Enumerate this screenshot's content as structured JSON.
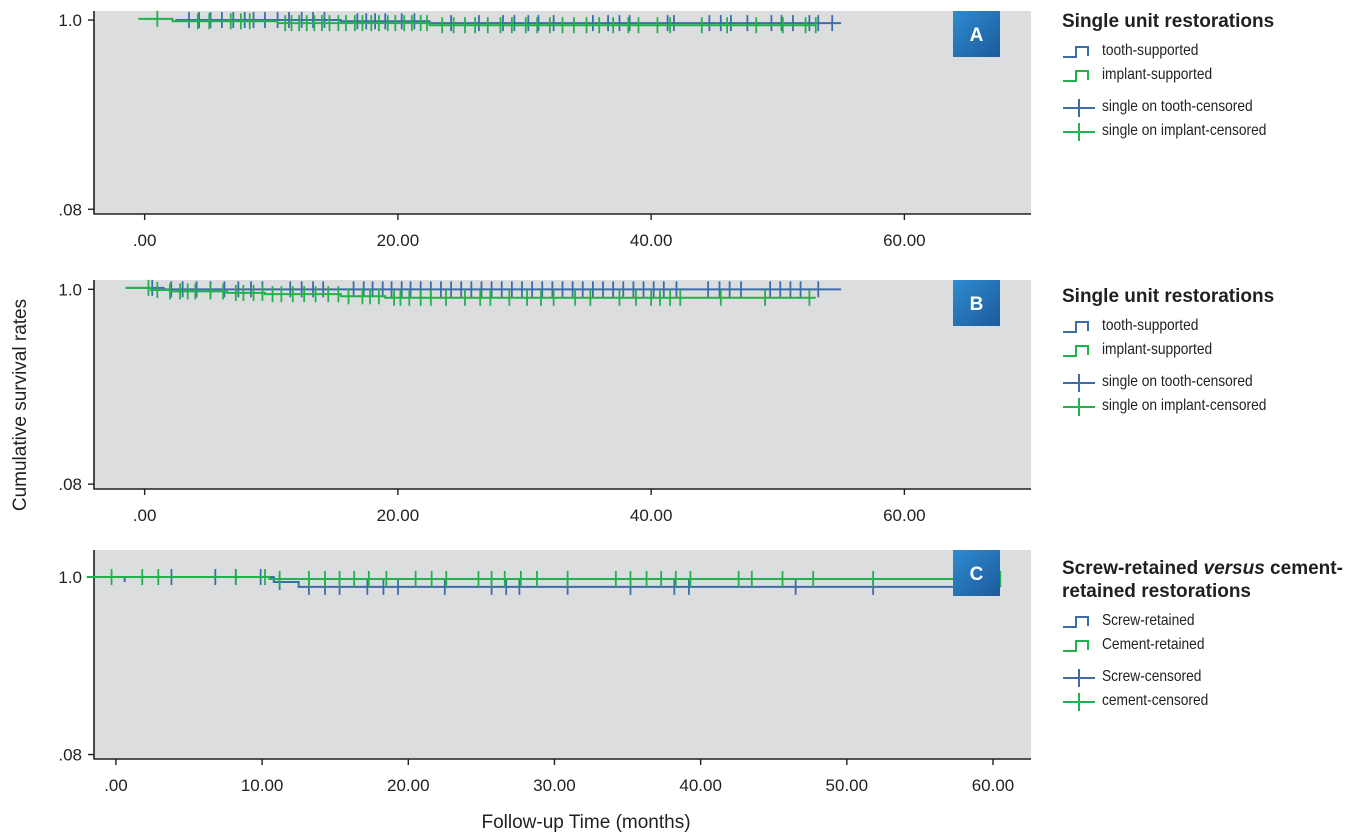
{
  "figure": {
    "y_axis_label": "Cumulative  survival  rates",
    "x_axis_label": "Follow-up Time (months)"
  },
  "colors": {
    "blue": "#3c6da8",
    "green": "#22b24c",
    "plot_bg": "#dcdddf",
    "axis": "#231f20"
  },
  "legends": [
    {
      "title": "Single unit restorations",
      "items": [
        {
          "label": "tooth-supported",
          "kind": "step",
          "color": "#3c6da8"
        },
        {
          "label": "implant-supported",
          "kind": "step",
          "color": "#22b24c"
        },
        {
          "label": "single on tooth-censored",
          "kind": "cross",
          "color": "#3c6da8"
        },
        {
          "label": "single on implant-censored",
          "kind": "cross",
          "color": "#22b24c"
        }
      ]
    },
    {
      "title": "Single unit restorations",
      "items": [
        {
          "label": "tooth-supported",
          "kind": "step",
          "color": "#3c6da8"
        },
        {
          "label": "implant-supported",
          "kind": "step",
          "color": "#22b24c"
        },
        {
          "label": "single on tooth-censored",
          "kind": "cross",
          "color": "#3c6da8"
        },
        {
          "label": "single on implant-censored",
          "kind": "cross",
          "color": "#22b24c"
        }
      ]
    },
    {
      "title_parts": [
        "Screw-retained ",
        "versus",
        " cement-retained restorations"
      ],
      "items": [
        {
          "label": "Screw-retained",
          "kind": "step",
          "color": "#3c6da8"
        },
        {
          "label": "Cement-retained",
          "kind": "step",
          "color": "#22b24c"
        },
        {
          "label": "Screw-censored",
          "kind": "cross",
          "color": "#3c6da8"
        },
        {
          "label": "cement-censored",
          "kind": "cross",
          "color": "#22b24c"
        }
      ]
    }
  ],
  "chart_data": [
    {
      "panel_label": "A",
      "type": "line",
      "xlim": [
        -4,
        70
      ],
      "ylim": [
        0.057,
        1.044
      ],
      "xticks": [
        0,
        20,
        40,
        60
      ],
      "xtick_labels": [
        ".00",
        "20.00",
        "40.00",
        "60.00"
      ],
      "yticks": [
        0.08,
        1.0
      ],
      "ytick_labels": [
        ".08",
        "1.0"
      ],
      "series": [
        {
          "color": "#3c6da8",
          "steps": [
            [
              2.5,
              1.0
            ],
            [
              15.5,
              0.994
            ],
            [
              22.5,
              0.985
            ],
            [
              55,
              0.975
            ]
          ],
          "start": [
            2.5,
            0.994
          ],
          "censored_x": [
            3.5,
            4.3,
            5.2,
            6.1,
            7.0,
            7.9,
            8.6,
            9.5,
            10.5,
            11.4,
            12.4,
            13.3,
            14.2,
            16.8,
            17.5,
            18.2,
            19.0,
            20.3,
            21.3,
            24.2,
            26.4,
            28.3,
            29.2,
            30.3,
            31.1,
            32.3,
            35.4,
            36.6,
            37.5,
            38.3,
            41.3,
            41.8,
            44.6,
            45.5,
            46.3,
            47.6,
            49.5,
            50.3,
            51.2,
            52.5,
            53.2,
            54.3
          ]
        },
        {
          "color": "#22b24c",
          "steps": [
            [
              -0.5,
              1.006
            ],
            [
              2.2,
              0.994
            ],
            [
              10.5,
              0.985
            ],
            [
              22.5,
              0.975
            ],
            [
              53,
              0.975
            ]
          ],
          "start": [
            -0.5,
            1.006
          ],
          "censored_x": [
            1.0,
            4.2,
            5.1,
            6.8,
            7.6,
            8.3,
            11.1,
            11.6,
            12.2,
            12.8,
            13.4,
            14.0,
            14.6,
            15.3,
            15.9,
            16.6,
            17.2,
            17.9,
            18.5,
            19.2,
            19.8,
            20.5,
            21.1,
            21.8,
            22.3,
            23.5,
            24.4,
            25.3,
            26.1,
            27.1,
            28.1,
            29.0,
            30.1,
            31.0,
            32.0,
            33.0,
            33.9,
            34.9,
            35.9,
            37.0,
            38.2,
            39.0,
            40.5,
            41.5,
            44.0,
            46.0,
            48.3,
            50.4,
            52.2,
            53.0
          ]
        }
      ]
    },
    {
      "panel_label": "B",
      "type": "line",
      "xlim": [
        -4,
        70
      ],
      "ylim": [
        0.057,
        1.044
      ],
      "xticks": [
        0,
        20,
        40,
        60
      ],
      "xtick_labels": [
        ".00",
        "20.00",
        "40.00",
        "60.00"
      ],
      "yticks": [
        0.08,
        1.0
      ],
      "ytick_labels": [
        ".08",
        "1.0"
      ],
      "series": [
        {
          "color": "#3c6da8",
          "steps": [
            [
              -1.5,
              1.007
            ],
            [
              1.5,
              1.0
            ],
            [
              55,
              1.0
            ]
          ],
          "start": [
            -1.5,
            1.007
          ],
          "censored_x": [
            0.6,
            2.1,
            3.0,
            4.1,
            5.2,
            6.3,
            7.4,
            8.4,
            9.3,
            11.5,
            12.4,
            13.3,
            14.1,
            16.5,
            17.3,
            18.0,
            18.8,
            19.5,
            20.3,
            21.0,
            21.8,
            22.6,
            23.4,
            24.2,
            25.0,
            25.8,
            26.6,
            27.4,
            28.2,
            29.0,
            29.8,
            30.6,
            31.4,
            32.2,
            33.0,
            33.8,
            34.6,
            35.4,
            36.2,
            37.0,
            37.8,
            38.6,
            39.4,
            40.2,
            41.0,
            42.0,
            44.5,
            45.4,
            46.2,
            47.1,
            49.4,
            50.2,
            51.0,
            51.8,
            53.2
          ]
        },
        {
          "color": "#22b24c",
          "steps": [
            [
              -1.5,
              1.007
            ],
            [
              0.5,
              0.997
            ],
            [
              2.0,
              0.99
            ],
            [
              6.5,
              0.983
            ],
            [
              9.5,
              0.977
            ],
            [
              15.5,
              0.967
            ],
            [
              19.0,
              0.96
            ],
            [
              53,
              0.96
            ]
          ],
          "start": [
            -1.5,
            1.007
          ],
          "censored_x": [
            0.3,
            1.0,
            2.0,
            2.8,
            3.4,
            4.0,
            5.2,
            6.2,
            7.2,
            7.8,
            8.6,
            9.3,
            10.1,
            10.8,
            11.7,
            12.6,
            13.5,
            14.5,
            15.3,
            16.1,
            17.2,
            17.8,
            18.5,
            19.7,
            20.2,
            20.9,
            21.8,
            22.6,
            23.8,
            25.3,
            26.5,
            27.3,
            28.8,
            30.2,
            31.3,
            32.3,
            34.0,
            35.2,
            37.5,
            38.8,
            40.0,
            40.7,
            41.5,
            42.3,
            45.5,
            49.0,
            52.5
          ]
        }
      ]
    },
    {
      "panel_label": "C",
      "type": "line",
      "xlim": [
        -1.5,
        62.6
      ],
      "ylim": [
        0.057,
        1.14
      ],
      "xticks": [
        0,
        10,
        20,
        30,
        40,
        50,
        60
      ],
      "xtick_labels": [
        ".00",
        "10.00",
        "20.00",
        "30.00",
        "40.00",
        "50.00",
        "60.00"
      ],
      "yticks": [
        0.08,
        1.0
      ],
      "ytick_labels": [
        ".08",
        "1.0"
      ],
      "series": [
        {
          "color": "#3c6da8",
          "steps": [
            [
              0.6,
              1.0
            ],
            [
              10.8,
              0.974
            ],
            [
              12.5,
              0.949
            ],
            [
              60.5,
              0.949
            ]
          ],
          "start": [
            0.6,
            0.974
          ],
          "censored_x": [
            3.8,
            6.8,
            8.2,
            9.9,
            11.2,
            13.2,
            14.3,
            15.3,
            17.2,
            18.3,
            19.3,
            22.5,
            25.7,
            26.7,
            27.6,
            30.9,
            35.2,
            38.2,
            39.2,
            46.5,
            51.8
          ]
        },
        {
          "color": "#22b24c",
          "steps": [
            [
              -2.0,
              1.0
            ],
            [
              10.5,
              0.99
            ],
            [
              60.5,
              0.99
            ]
          ],
          "start": [
            -2.0,
            1.0
          ],
          "censored_x": [
            -0.3,
            1.8,
            2.9,
            8.2,
            10.2,
            11.2,
            13.2,
            14.3,
            15.3,
            16.3,
            17.3,
            18.5,
            20.5,
            21.6,
            22.6,
            24.8,
            25.7,
            26.6,
            27.7,
            28.8,
            30.9,
            34.2,
            35.2,
            36.3,
            37.3,
            38.3,
            39.3,
            42.6,
            43.5,
            45.6,
            47.7,
            51.8,
            58.2,
            60.5
          ]
        }
      ]
    }
  ]
}
